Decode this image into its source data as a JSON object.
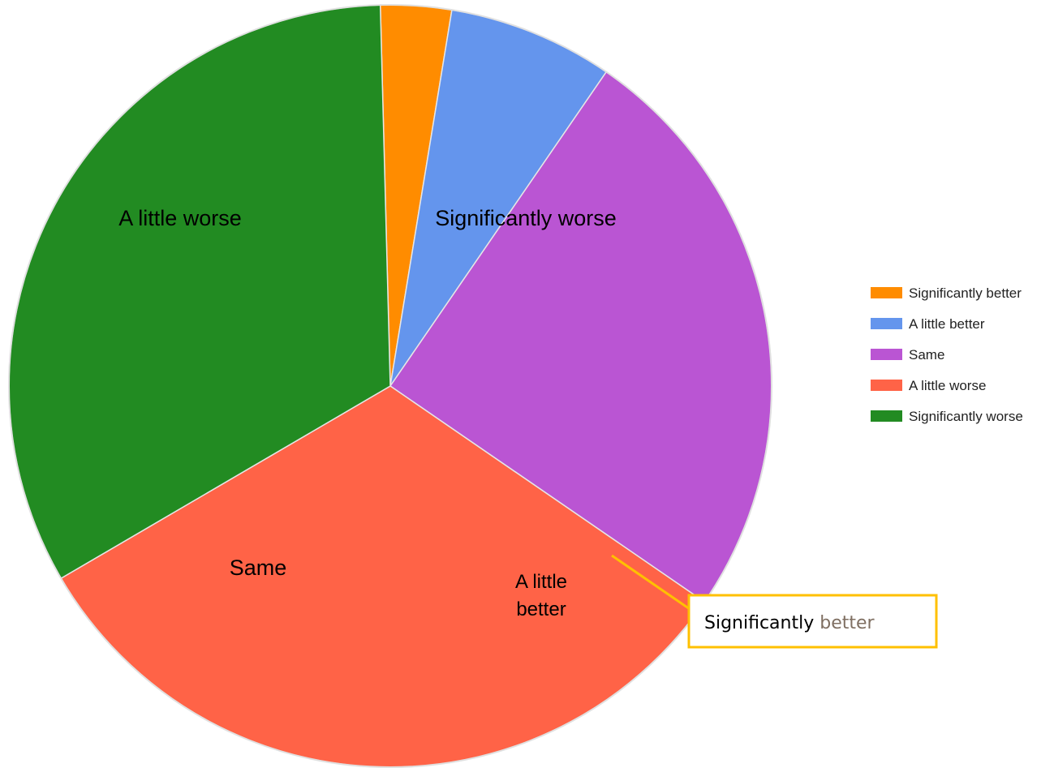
{
  "chart_data": {
    "type": "pie",
    "categories": [
      "Significantly better",
      "A little better",
      "Same",
      "A little worse",
      "Significantly worse"
    ],
    "values": [
      3,
      7,
      25,
      32,
      33
    ],
    "colors": [
      "#ff8c00",
      "#6495ed",
      "#ba55d3",
      "#ff6347",
      "#228b22"
    ],
    "slice_labels": {
      "A little better": [
        "A little",
        "better"
      ],
      "Same": [
        "Same"
      ],
      "A little worse": [
        "A little worse"
      ],
      "Significantly worse": [
        "Significantly worse"
      ]
    },
    "legend": {
      "position": "right",
      "entries": [
        "Significantly better",
        "A little better",
        "Same",
        "A little worse",
        "Significantly worse"
      ]
    },
    "callout": {
      "category": "Significantly better",
      "text_part1": "Significantly",
      "text_part2": "better",
      "border_color": "#ffc000",
      "text2_color": "#7f6f62"
    }
  }
}
